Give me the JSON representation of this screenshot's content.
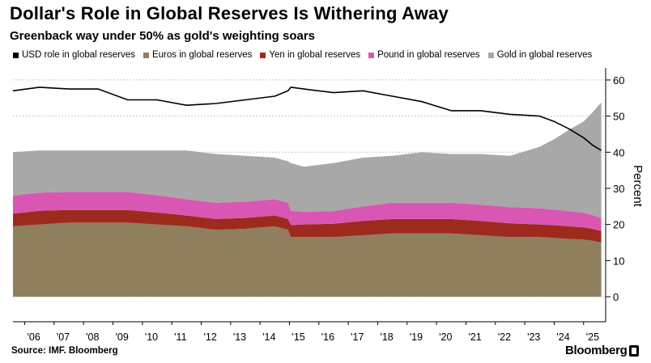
{
  "header": {
    "title": "Dollar's Role in Global Reserves Is Withering Away",
    "subtitle": "Greenback way under 50% as gold's weighting soars"
  },
  "footer": {
    "source": "Source: IMF. Bloomberg",
    "brand": "Bloomberg"
  },
  "colors": {
    "usd": "#000000",
    "euros": "#8f7f5f",
    "yen": "#9e2a1e",
    "pound": "#d957b3",
    "gold": "#a8a8a8",
    "grid": "#c8c8c8"
  },
  "chart_data": {
    "type": "area",
    "title": "Dollar's Role in Global Reserves Is Withering Away",
    "subtitle": "Greenback way under 50% as gold's weighting soars",
    "ylabel": "Percent",
    "ylim": [
      0,
      62
    ],
    "yticks": [
      0,
      10,
      20,
      30,
      40,
      50,
      60
    ],
    "xlim": [
      2005.6,
      2025.75
    ],
    "xticks": [
      {
        "value": 2006,
        "label": "'06"
      },
      {
        "value": 2007,
        "label": "'07"
      },
      {
        "value": 2008,
        "label": "'08"
      },
      {
        "value": 2009,
        "label": "'09"
      },
      {
        "value": 2010,
        "label": "'10"
      },
      {
        "value": 2011,
        "label": "'11"
      },
      {
        "value": 2012,
        "label": "'12"
      },
      {
        "value": 2013,
        "label": "'13"
      },
      {
        "value": 2014,
        "label": "'14"
      },
      {
        "value": 2015,
        "label": "'15"
      },
      {
        "value": 2016,
        "label": "'16"
      },
      {
        "value": 2017,
        "label": "'17"
      },
      {
        "value": 2018,
        "label": "'18"
      },
      {
        "value": 2019,
        "label": "'19"
      },
      {
        "value": 2020,
        "label": "'20"
      },
      {
        "value": 2021,
        "label": "'21"
      },
      {
        "value": 2022,
        "label": "'22"
      },
      {
        "value": 2023,
        "label": "'23"
      },
      {
        "value": 2024,
        "label": "'24"
      },
      {
        "value": 2025,
        "label": "'25"
      }
    ],
    "grid": true,
    "legend_position": "top",
    "x": [
      2005.6,
      2006.5,
      2007.5,
      2008.5,
      2009.5,
      2010.5,
      2011.5,
      2012.5,
      2013.5,
      2014.5,
      2014.95,
      2015.05,
      2015.5,
      2016.5,
      2017.5,
      2018.5,
      2019.5,
      2020.5,
      2021.5,
      2022.5,
      2023.5,
      2024.0,
      2024.5,
      2025.0,
      2025.3,
      2025.6
    ],
    "series": [
      {
        "name": "Euros in global reserves",
        "kind": "stack",
        "values": [
          19.5,
          20.0,
          20.5,
          20.5,
          20.5,
          20.0,
          19.5,
          18.5,
          18.8,
          19.5,
          18.5,
          16.5,
          16.5,
          16.5,
          17.0,
          17.5,
          17.5,
          17.5,
          17.0,
          16.5,
          16.5,
          16.3,
          16.0,
          15.8,
          15.5,
          15.0
        ]
      },
      {
        "name": "Yen in global reserves",
        "kind": "stack",
        "values": [
          3.5,
          3.8,
          3.5,
          3.5,
          3.5,
          3.3,
          3.0,
          3.0,
          3.0,
          3.0,
          3.0,
          3.3,
          3.5,
          3.7,
          4.0,
          4.0,
          4.0,
          4.0,
          4.0,
          3.8,
          3.5,
          3.5,
          3.5,
          3.4,
          3.3,
          3.2
        ]
      },
      {
        "name": "Pound in global reserves",
        "kind": "stack",
        "values": [
          5.0,
          5.0,
          5.0,
          5.0,
          5.0,
          4.8,
          4.5,
          4.5,
          4.5,
          4.5,
          4.5,
          4.0,
          3.5,
          3.5,
          4.0,
          4.5,
          4.5,
          4.5,
          4.5,
          4.5,
          4.5,
          4.3,
          4.2,
          4.0,
          3.8,
          3.6
        ]
      },
      {
        "name": "Gold in global reserves",
        "kind": "stack",
        "values": [
          12.0,
          11.7,
          11.5,
          11.5,
          11.5,
          12.4,
          13.5,
          13.5,
          12.7,
          11.5,
          11.5,
          13.2,
          12.5,
          13.3,
          13.5,
          13.0,
          14.0,
          13.5,
          14.0,
          14.2,
          17.0,
          19.5,
          22.5,
          25.3,
          28.4,
          32.0
        ]
      },
      {
        "name": "USD role in global reserves",
        "kind": "line",
        "values": [
          57.0,
          58.0,
          57.5,
          57.5,
          54.5,
          54.5,
          53.0,
          53.5,
          54.5,
          55.5,
          57.0,
          58.0,
          57.5,
          56.5,
          57.0,
          55.5,
          54.0,
          51.5,
          51.5,
          50.5,
          50.0,
          48.5,
          46.5,
          44.0,
          42.0,
          40.5
        ]
      }
    ]
  }
}
